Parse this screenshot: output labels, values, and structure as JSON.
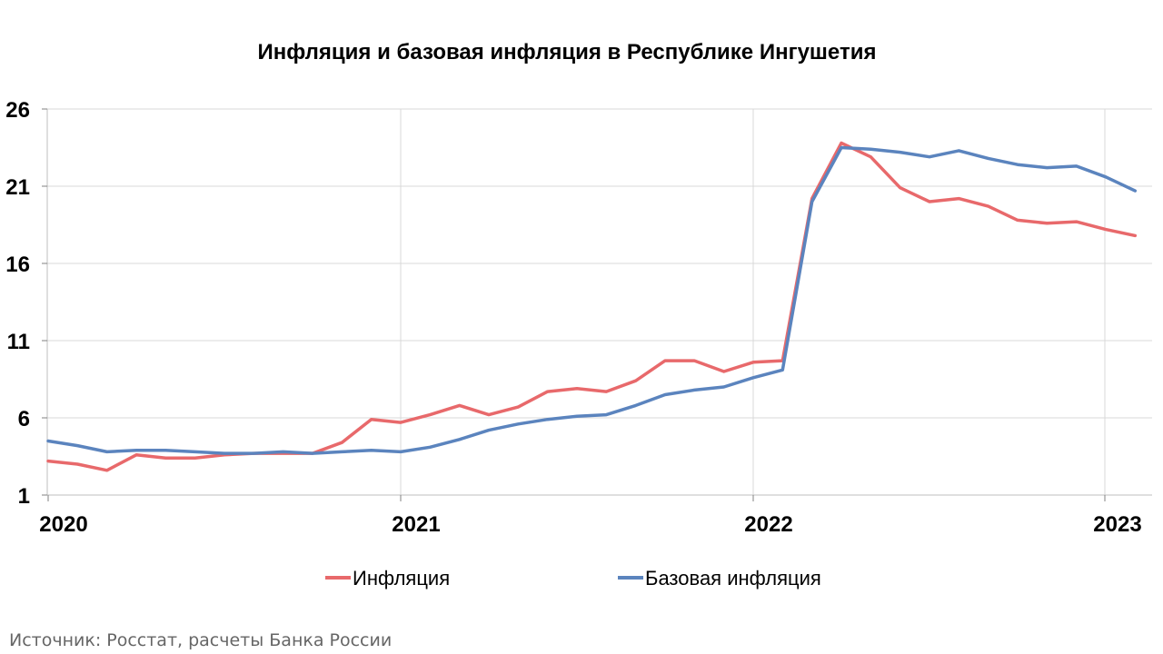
{
  "chart_data": {
    "type": "line",
    "title": "Инфляция и базовая инфляция в Республике Ингушетия",
    "xlabel": "",
    "ylabel": "",
    "ylim": [
      1,
      26
    ],
    "y_ticks": [
      1,
      6,
      11,
      16,
      21,
      26
    ],
    "x_ticks": [
      "2020",
      "2021",
      "2022",
      "2023"
    ],
    "x_range": [
      "2020-01",
      "2023-03"
    ],
    "grid": true,
    "legend_position": "bottom",
    "x": [
      "2020-01",
      "2020-02",
      "2020-03",
      "2020-04",
      "2020-05",
      "2020-06",
      "2020-07",
      "2020-08",
      "2020-09",
      "2020-10",
      "2020-11",
      "2020-12",
      "2021-01",
      "2021-02",
      "2021-03",
      "2021-04",
      "2021-05",
      "2021-06",
      "2021-07",
      "2021-08",
      "2021-09",
      "2021-10",
      "2021-11",
      "2021-12",
      "2022-01",
      "2022-02",
      "2022-03",
      "2022-04",
      "2022-05",
      "2022-06",
      "2022-07",
      "2022-08",
      "2022-09",
      "2022-10",
      "2022-11",
      "2022-12",
      "2023-01",
      "2023-02"
    ],
    "series": [
      {
        "name": "Инфляция",
        "color": "#e8696b",
        "values": [
          3.2,
          3.0,
          2.6,
          3.6,
          3.4,
          3.4,
          3.6,
          3.7,
          3.7,
          3.7,
          4.4,
          5.9,
          5.7,
          6.2,
          6.8,
          6.2,
          6.7,
          7.7,
          7.9,
          7.7,
          8.4,
          9.7,
          9.7,
          9.0,
          9.6,
          9.7,
          20.2,
          23.8,
          22.9,
          20.9,
          20.0,
          20.2,
          19.7,
          18.8,
          18.6,
          18.7,
          18.2,
          17.8
        ]
      },
      {
        "name": "Базовая инфляция",
        "color": "#5b84be",
        "values": [
          4.5,
          4.2,
          3.8,
          3.9,
          3.9,
          3.8,
          3.7,
          3.7,
          3.8,
          3.7,
          3.8,
          3.9,
          3.8,
          4.1,
          4.6,
          5.2,
          5.6,
          5.9,
          6.1,
          6.2,
          6.8,
          7.5,
          7.8,
          8.0,
          8.6,
          9.1,
          20.0,
          23.5,
          23.4,
          23.2,
          22.9,
          23.3,
          22.8,
          22.4,
          22.2,
          22.3,
          21.6,
          20.7
        ]
      }
    ]
  },
  "source": "Источник: Росстат, расчеты Банка России"
}
